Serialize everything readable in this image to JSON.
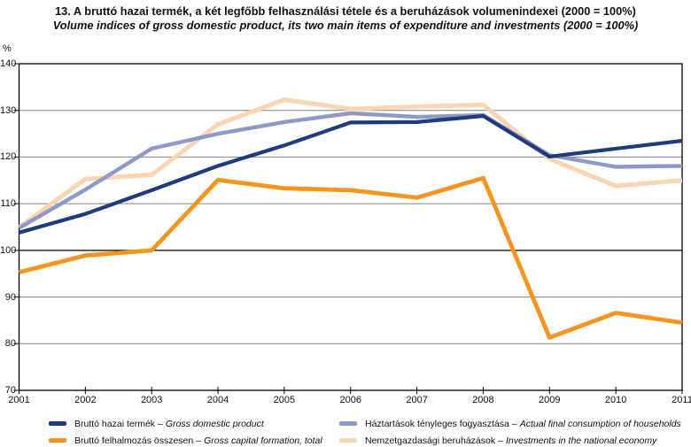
{
  "legend": {
    "separator": "–"
  },
  "chart_data": {
    "type": "line",
    "title": "13. A bruttó hazai termék, a két legfőbb felhasználási tétele és a beruházások volumenindexei (2000 = 100%)",
    "subtitle": "Volume indices of gross domestic product, its two main items of expenditure and investments (2000 = 100%)",
    "unit": "%",
    "x": [
      "2001",
      "2002",
      "2003",
      "2004",
      "2005",
      "2006",
      "2007",
      "2008",
      "2009",
      "2010",
      "2011"
    ],
    "ylim": [
      70,
      140
    ],
    "ytick_step": 10,
    "grid": "horizontal",
    "emphasized_gridline": 100,
    "legend_position": "bottom",
    "series": [
      {
        "id": "gdp",
        "label_hu": "Bruttó hazai termék",
        "label_en": "Gross domestic product",
        "color": "#1f3b7d",
        "values": [
          103.8,
          107.8,
          112.9,
          118.1,
          122.5,
          127.4,
          127.5,
          128.8,
          120.1,
          121.8,
          123.5
        ]
      },
      {
        "id": "gross-capital-formation",
        "label_hu": "Bruttó felhalmozás összesen",
        "label_en": "Gross capital formation, total",
        "color": "#f7941e",
        "values": [
          95.3,
          98.9,
          100.0,
          115.1,
          113.3,
          112.9,
          111.3,
          115.5,
          81.3,
          86.6,
          84.5
        ]
      },
      {
        "id": "household-consumption",
        "label_hu": "Háztartások tényleges fogyasztása",
        "label_en": "Actual final consumption of households",
        "color": "#8e99c7",
        "values": [
          104.8,
          113.0,
          121.8,
          125.0,
          127.5,
          129.4,
          128.6,
          129.0,
          120.4,
          117.9,
          118.1
        ]
      },
      {
        "id": "investments",
        "label_hu": "Nemzetgazdasági beruházások",
        "label_en": "Investments in the national economy",
        "color": "#fad5b3",
        "values": [
          104.9,
          115.3,
          116.2,
          127.0,
          132.3,
          130.3,
          130.8,
          131.2,
          119.6,
          113.8,
          115.0
        ]
      }
    ]
  }
}
